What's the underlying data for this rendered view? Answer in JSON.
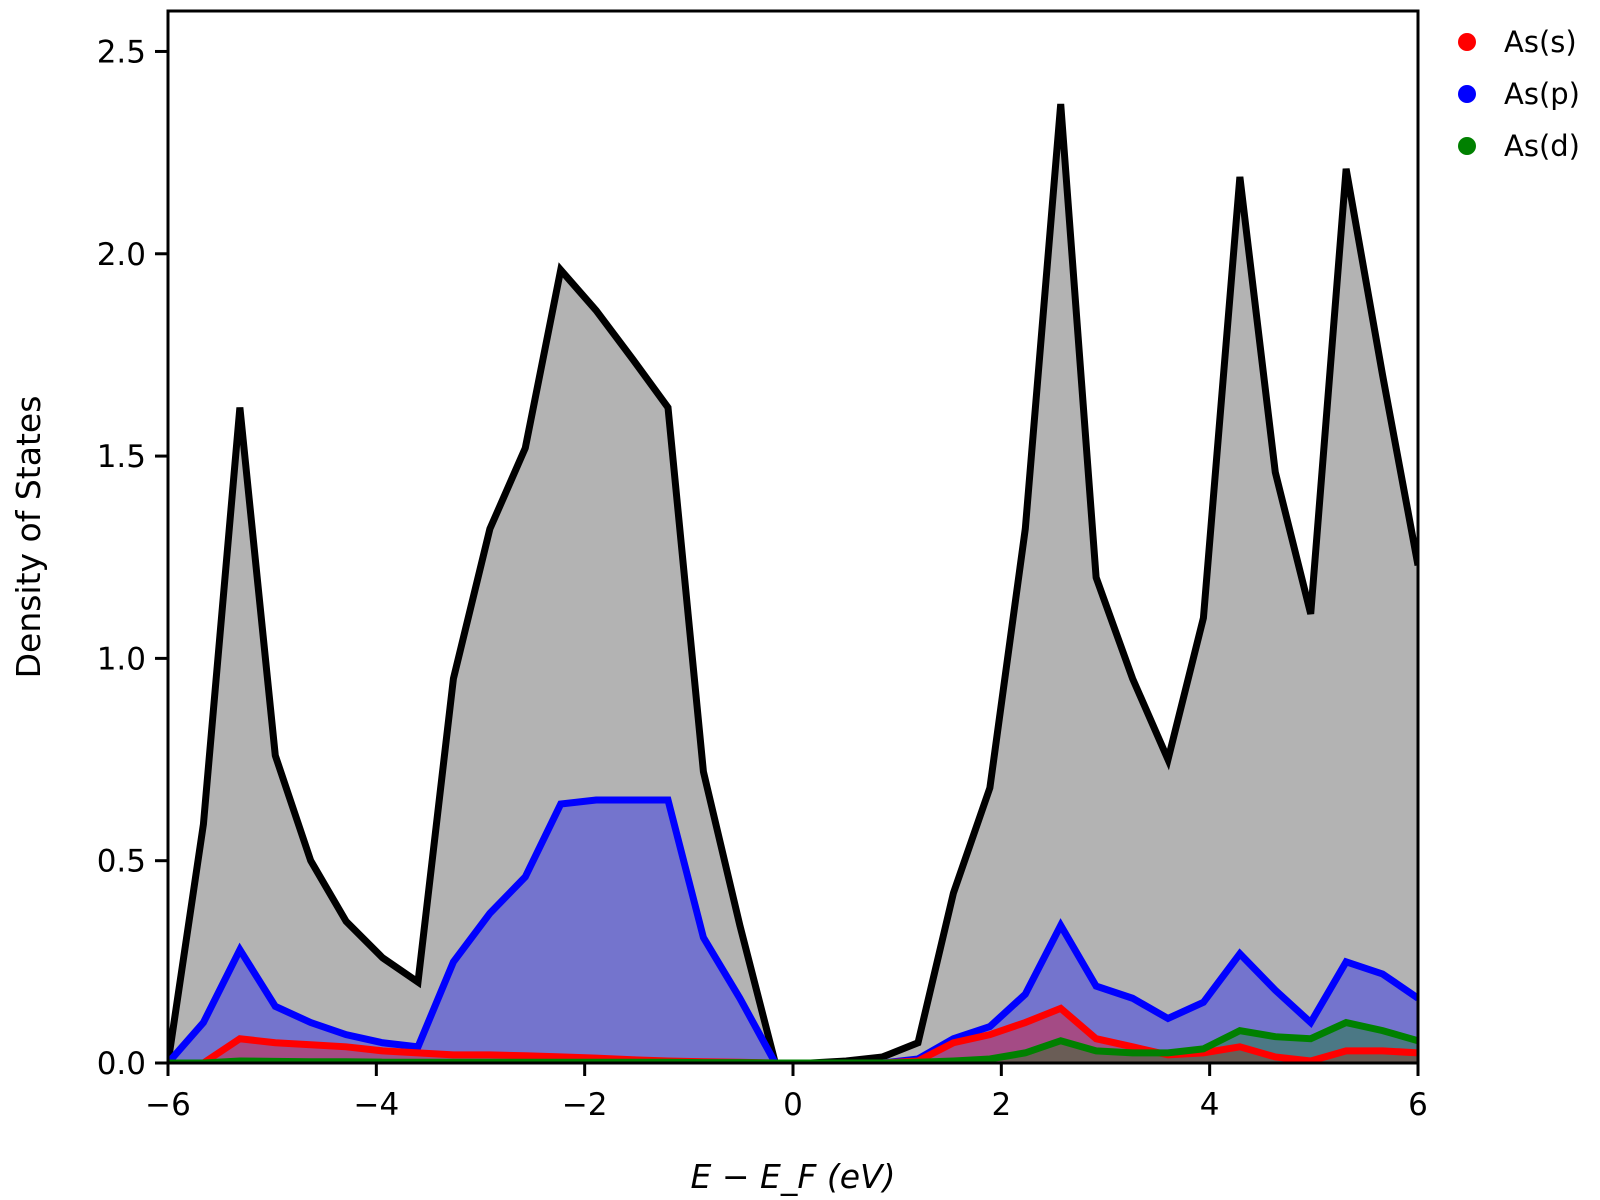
{
  "chart_data": {
    "type": "area",
    "title": "",
    "xlabel": "E − E_F (eV)",
    "ylabel": "Density of States",
    "xlim": [
      -6,
      6
    ],
    "ylim": [
      0,
      2.6
    ],
    "grid": false,
    "legend_position": "outside-top-right",
    "xticks": [
      {
        "value": -6,
        "label": "−6"
      },
      {
        "value": -4,
        "label": "−4"
      },
      {
        "value": -2,
        "label": "−2"
      },
      {
        "value": 0,
        "label": "0"
      },
      {
        "value": 2,
        "label": "2"
      },
      {
        "value": 4,
        "label": "4"
      },
      {
        "value": 6,
        "label": "6"
      }
    ],
    "yticks": [
      {
        "value": 0,
        "label": "0.0"
      },
      {
        "value": 0.5,
        "label": "0.5"
      },
      {
        "value": 1.0,
        "label": "1.0"
      },
      {
        "value": 1.5,
        "label": "1.5"
      },
      {
        "value": 2.0,
        "label": "2.0"
      },
      {
        "value": 2.5,
        "label": "2.5"
      }
    ],
    "x": [
      -6.0,
      -5.66,
      -5.31,
      -4.97,
      -4.63,
      -4.29,
      -3.94,
      -3.6,
      -3.26,
      -2.91,
      -2.57,
      -2.23,
      -1.89,
      -1.54,
      -1.2,
      -0.86,
      -0.51,
      -0.17,
      0.17,
      0.51,
      0.86,
      1.2,
      1.54,
      1.89,
      2.23,
      2.57,
      2.91,
      3.26,
      3.6,
      3.94,
      4.29,
      4.63,
      4.97,
      5.31,
      5.66,
      6.0
    ],
    "series": [
      {
        "name": "Total",
        "legend": false,
        "line_color": "#000000",
        "fill_color": "#b3b3b3",
        "values": [
          0.0,
          0.59,
          1.62,
          0.76,
          0.5,
          0.35,
          0.26,
          0.2,
          0.95,
          1.32,
          1.52,
          1.96,
          1.86,
          1.74,
          1.62,
          0.72,
          0.34,
          0.0,
          0.0,
          0.005,
          0.015,
          0.05,
          0.42,
          0.68,
          1.32,
          2.37,
          1.2,
          0.95,
          0.75,
          1.1,
          2.19,
          1.46,
          1.11,
          2.21,
          1.7,
          1.23
        ]
      },
      {
        "name": "As(p)",
        "legend": true,
        "legend_text": "As(p)",
        "line_color": "#0000ff",
        "fill_color": "#0000ff",
        "fill_opacity": 0.35,
        "values": [
          0.0,
          0.1,
          0.28,
          0.14,
          0.1,
          0.07,
          0.05,
          0.04,
          0.25,
          0.37,
          0.46,
          0.64,
          0.65,
          0.65,
          0.65,
          0.31,
          0.16,
          0.0,
          0.0,
          0.0,
          0.0,
          0.01,
          0.06,
          0.09,
          0.17,
          0.34,
          0.19,
          0.16,
          0.11,
          0.15,
          0.27,
          0.18,
          0.1,
          0.25,
          0.22,
          0.16
        ]
      },
      {
        "name": "As(s)",
        "legend": true,
        "legend_text": "As(s)",
        "line_color": "#ff0000",
        "fill_color": "#ff0000",
        "fill_opacity": 0.35,
        "values": [
          0.0,
          0.0,
          0.06,
          0.05,
          0.045,
          0.04,
          0.03,
          0.025,
          0.02,
          0.02,
          0.018,
          0.015,
          0.012,
          0.008,
          0.005,
          0.003,
          0.002,
          0.0,
          0.0,
          0.0,
          0.0,
          0.005,
          0.05,
          0.07,
          0.1,
          0.135,
          0.06,
          0.04,
          0.02,
          0.025,
          0.04,
          0.015,
          0.005,
          0.03,
          0.03,
          0.025
        ]
      },
      {
        "name": "As(d)",
        "legend": true,
        "legend_text": "As(d)",
        "line_color": "#008000",
        "fill_color": "#008000",
        "fill_opacity": 0.35,
        "values": [
          0.0,
          0.0,
          0.005,
          0.004,
          0.003,
          0.003,
          0.002,
          0.002,
          0.002,
          0.002,
          0.002,
          0.002,
          0.002,
          0.002,
          0.002,
          0.001,
          0.001,
          0.0,
          0.0,
          0.0,
          0.0,
          0.002,
          0.005,
          0.01,
          0.025,
          0.055,
          0.03,
          0.025,
          0.025,
          0.035,
          0.08,
          0.065,
          0.06,
          0.1,
          0.08,
          0.055
        ]
      }
    ]
  }
}
